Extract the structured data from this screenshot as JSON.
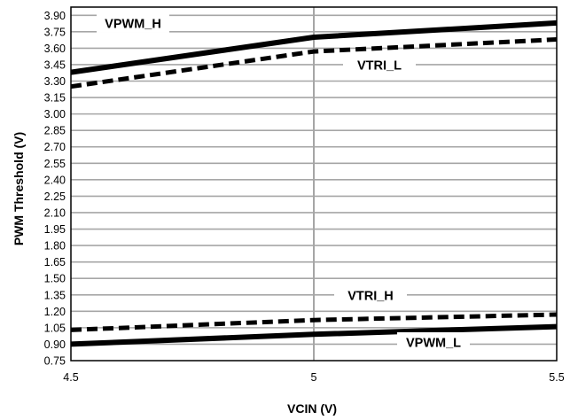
{
  "chart_data": {
    "type": "line",
    "xlabel": "VCIN (V)",
    "ylabel": "PWM Threshold (V)",
    "xlim": [
      4.5,
      5.5
    ],
    "ylim": [
      0.75,
      3.975
    ],
    "x_ticks": [
      "4.5",
      "5",
      "5.5"
    ],
    "y_ticks": [
      "0.75",
      "0.90",
      "1.05",
      "1.20",
      "1.35",
      "1.50",
      "1.65",
      "1.80",
      "1.95",
      "2.10",
      "2.25",
      "2.40",
      "2.55",
      "2.70",
      "2.85",
      "3.00",
      "3.15",
      "3.30",
      "3.45",
      "3.60",
      "3.75",
      "3.90"
    ],
    "grid": true,
    "legend": "none",
    "series": [
      {
        "name": "VPWM_H",
        "style": "solid",
        "x": [
          4.5,
          5.0,
          5.5
        ],
        "y": [
          3.38,
          3.7,
          3.83
        ]
      },
      {
        "name": "VTRI_L",
        "style": "dashed",
        "x": [
          4.5,
          5.0,
          5.5
        ],
        "y": [
          3.25,
          3.57,
          3.68
        ]
      },
      {
        "name": "VTRI_H",
        "style": "dashed",
        "x": [
          4.5,
          5.0,
          5.5
        ],
        "y": [
          1.03,
          1.12,
          1.17
        ]
      },
      {
        "name": "VPWM_L",
        "style": "solid",
        "x": [
          4.5,
          5.0,
          5.5
        ],
        "y": [
          0.9,
          0.99,
          1.06
        ]
      }
    ]
  }
}
